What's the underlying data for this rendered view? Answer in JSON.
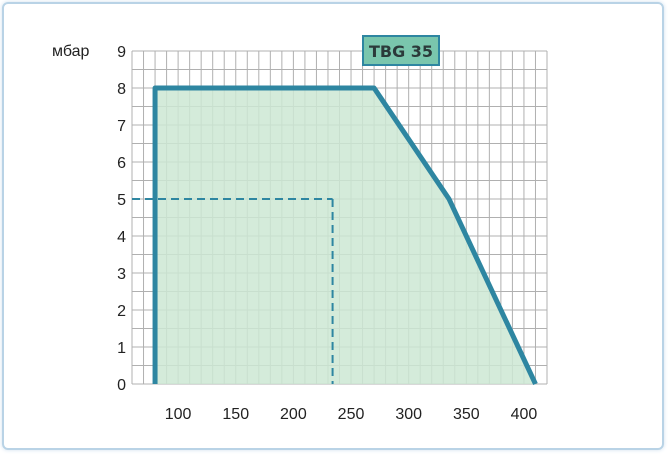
{
  "chart_data": {
    "type": "area",
    "title": "TBG 35",
    "ylabel": "мбар",
    "xlabel": "",
    "x_ticks": [
      100,
      150,
      200,
      250,
      300,
      350,
      400
    ],
    "y_ticks": [
      0,
      1,
      2,
      3,
      4,
      5,
      6,
      7,
      8,
      9
    ],
    "xlim": [
      60,
      420
    ],
    "ylim": [
      0,
      9
    ],
    "grid": true,
    "series": [
      {
        "x": [
          80,
          80,
          270,
          335,
          410
        ],
        "y": [
          0,
          8,
          8,
          5,
          0
        ]
      }
    ],
    "reference_point": {
      "x": 234,
      "y": 5
    },
    "colors": {
      "fill": "#cce8d4",
      "outline": "#2e86a1",
      "grid": "#b0b0b0",
      "badge_fill": "#7ac6ad",
      "badge_border": "#2e86a1"
    }
  }
}
